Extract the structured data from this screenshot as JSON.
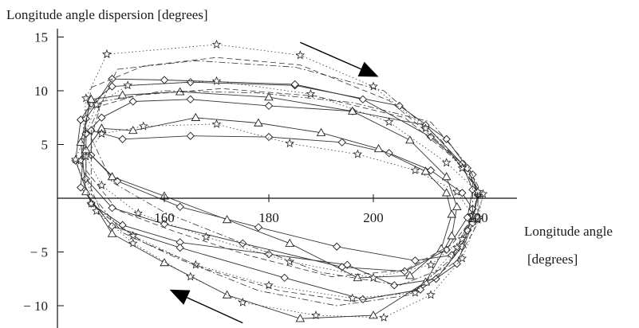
{
  "chart_data": {
    "type": "line",
    "ylabel": "Longitude angle dispersion [degrees]",
    "xlabel_line1": "Longitude angle",
    "xlabel_line2": "[degrees]",
    "xlim": [
      142,
      223
    ],
    "ylim": [
      -12,
      15.5
    ],
    "x_ticks": [
      {
        "value": 160,
        "label": "160"
      },
      {
        "value": 180,
        "label": "180"
      },
      {
        "value": 200,
        "label": "200"
      },
      {
        "value": 220,
        "label": "220"
      }
    ],
    "y_ticks": [
      {
        "value": 15,
        "label": "15"
      },
      {
        "value": 10,
        "label": "10"
      },
      {
        "value": 5,
        "label": "5"
      },
      {
        "value": -5,
        "label": "− 5"
      },
      {
        "value": -10,
        "label": "− 10"
      }
    ],
    "arrows": [
      {
        "direction": "right-down",
        "from": [
          186,
          14.5
        ],
        "to": [
          201,
          11.3
        ]
      },
      {
        "direction": "left-up",
        "from": [
          175,
          -11.6
        ],
        "to": [
          161,
          -8.5
        ]
      }
    ],
    "series": [
      {
        "marker": "diamond",
        "dash": "solid",
        "points": [
          [
            144,
            7.3
          ],
          [
            146,
            8.8
          ],
          [
            150,
            10.4
          ],
          [
            165,
            10.8
          ],
          [
            185,
            10.5
          ],
          [
            205,
            8.6
          ],
          [
            214,
            5.5
          ],
          [
            219,
            2.2
          ],
          [
            220,
            0.3
          ],
          [
            219,
            -1.7
          ],
          [
            217,
            -4.5
          ],
          [
            212,
            -7.5
          ],
          [
            204,
            -8.1
          ],
          [
            195,
            -6.2
          ],
          [
            180,
            -5.2
          ],
          [
            163,
            -4.1
          ],
          [
            152,
            -2.5
          ],
          [
            146,
            -0.5
          ],
          [
            143,
            3.5
          ],
          [
            144,
            7.3
          ]
        ]
      },
      {
        "marker": "diamond",
        "dash": "solid",
        "points": [
          [
            145,
            6.0
          ],
          [
            148,
            7.5
          ],
          [
            154,
            9.0
          ],
          [
            165,
            9.2
          ],
          [
            180,
            8.6
          ],
          [
            196,
            8.1
          ],
          [
            210,
            6.8
          ],
          [
            217,
            3.2
          ],
          [
            219,
            0.8
          ],
          [
            218,
            -1.8
          ],
          [
            214,
            -4.8
          ],
          [
            206,
            -6.8
          ],
          [
            194,
            -6.4
          ],
          [
            175,
            -4.2
          ],
          [
            160,
            -2.4
          ],
          [
            150,
            -0.9
          ],
          [
            145,
            1.8
          ],
          [
            145,
            6.0
          ]
        ]
      },
      {
        "marker": "diamond",
        "dash": "solid",
        "points": [
          [
            146,
            6.3
          ],
          [
            152,
            5.5
          ],
          [
            165,
            5.8
          ],
          [
            180,
            5.7
          ],
          [
            194,
            5.2
          ],
          [
            203,
            4.2
          ],
          [
            211,
            2.6
          ],
          [
            217,
            0.5
          ],
          [
            219,
            -1.0
          ],
          [
            218,
            -3.0
          ],
          [
            215,
            -5.3
          ],
          [
            208,
            -5.8
          ],
          [
            193,
            -4.5
          ],
          [
            178,
            -2.7
          ],
          [
            163,
            -0.8
          ],
          [
            151,
            1.6
          ],
          [
            146,
            4.0
          ],
          [
            146,
            6.3
          ]
        ]
      },
      {
        "marker": "diamond",
        "dash": "solid",
        "points": [
          [
            150,
            11.1
          ],
          [
            160,
            11.0
          ],
          [
            185,
            10.6
          ],
          [
            198,
            9.2
          ],
          [
            211,
            5.7
          ],
          [
            218,
            2.8
          ],
          [
            220,
            0.4
          ],
          [
            219,
            -2.3
          ],
          [
            216,
            -6.1
          ],
          [
            209,
            -8.5
          ],
          [
            198,
            -9.4
          ],
          [
            183,
            -7.4
          ],
          [
            163,
            -4.6
          ],
          [
            150,
            -2.6
          ],
          [
            144,
            1.0
          ],
          [
            145,
            7.4
          ],
          [
            150,
            11.1
          ]
        ]
      },
      {
        "marker": "triangle",
        "dash": "solid",
        "points": [
          [
            148,
            6.5
          ],
          [
            154,
            6.3
          ],
          [
            166,
            7.5
          ],
          [
            178,
            7.0
          ],
          [
            190,
            6.1
          ],
          [
            201,
            4.6
          ],
          [
            210,
            2.5
          ],
          [
            214,
            0.5
          ],
          [
            215,
            -1.5
          ],
          [
            213,
            -4.7
          ],
          [
            207,
            -7.2
          ],
          [
            197,
            -7.4
          ],
          [
            184,
            -4.2
          ],
          [
            172,
            -2.0
          ],
          [
            160,
            0.2
          ],
          [
            150,
            2.0
          ],
          [
            145,
            4.5
          ],
          [
            148,
            6.5
          ]
        ]
      },
      {
        "marker": "triangle",
        "dash": "solid",
        "points": [
          [
            146,
            9.2
          ],
          [
            152,
            9.6
          ],
          [
            163,
            9.9
          ],
          [
            180,
            9.4
          ],
          [
            196,
            8.1
          ],
          [
            207,
            5.4
          ],
          [
            214,
            2.0
          ],
          [
            216,
            -0.8
          ],
          [
            215,
            -3.5
          ],
          [
            210,
            -7.8
          ],
          [
            200,
            -10.9
          ],
          [
            186,
            -11.2
          ],
          [
            172,
            -9.0
          ],
          [
            160,
            -6.0
          ],
          [
            150,
            -3.3
          ],
          [
            145,
            0.6
          ],
          [
            144,
            5.2
          ],
          [
            146,
            9.2
          ]
        ]
      },
      {
        "marker": "star",
        "dash": "dotted",
        "points": [
          [
            149,
            13.4
          ],
          [
            170,
            14.3
          ],
          [
            186,
            13.3
          ],
          [
            200,
            10.4
          ],
          [
            210,
            6.5
          ],
          [
            217,
            2.8
          ],
          [
            221,
            0.4
          ],
          [
            220,
            -2.0
          ],
          [
            217,
            -5.6
          ],
          [
            211,
            -9.0
          ],
          [
            202,
            -11.1
          ],
          [
            189,
            -10.9
          ],
          [
            175,
            -9.7
          ],
          [
            165,
            -7.3
          ],
          [
            154,
            -4.2
          ],
          [
            147,
            -1.2
          ],
          [
            144,
            3.5
          ],
          [
            145,
            9.3
          ],
          [
            149,
            13.4
          ]
        ]
      },
      {
        "marker": "star",
        "dash": "dotted",
        "points": [
          [
            147,
            8.7
          ],
          [
            153,
            10.5
          ],
          [
            170,
            10.9
          ],
          [
            188,
            9.7
          ],
          [
            203,
            7.1
          ],
          [
            214,
            3.3
          ],
          [
            220,
            0.6
          ],
          [
            220,
            -1.8
          ],
          [
            216,
            -4.6
          ],
          [
            208,
            -8.8
          ],
          [
            196,
            -9.3
          ],
          [
            180,
            -8.1
          ],
          [
            166,
            -6.2
          ],
          [
            154,
            -3.5
          ],
          [
            146,
            -0.5
          ],
          [
            143,
            3.6
          ],
          [
            147,
            8.7
          ]
        ]
      },
      {
        "marker": "star",
        "dash": "dotted",
        "points": [
          [
            148,
            6.0
          ],
          [
            156,
            6.7
          ],
          [
            170,
            6.9
          ],
          [
            184,
            5.1
          ],
          [
            197,
            4.1
          ],
          [
            208,
            2.6
          ],
          [
            216,
            0.6
          ],
          [
            219,
            -1.6
          ],
          [
            217,
            -3.8
          ],
          [
            211,
            -6.2
          ],
          [
            200,
            -7.4
          ],
          [
            184,
            -5.9
          ],
          [
            168,
            -3.6
          ],
          [
            155,
            -1.4
          ],
          [
            148,
            1.2
          ],
          [
            145,
            3.9
          ],
          [
            148,
            6.0
          ]
        ]
      },
      {
        "marker": "none",
        "dash": "dashed",
        "points": [
          [
            146,
            10.3
          ],
          [
            156,
            12.3
          ],
          [
            170,
            13.1
          ],
          [
            186,
            12.4
          ],
          [
            203,
            9.1
          ],
          [
            214,
            4.6
          ],
          [
            220,
            0.9
          ],
          [
            220,
            -2.3
          ],
          [
            216,
            -5.8
          ],
          [
            208,
            -8.6
          ],
          [
            196,
            -9.6
          ],
          [
            182,
            -8.6
          ],
          [
            168,
            -6.6
          ],
          [
            156,
            -4.1
          ],
          [
            148,
            -1.4
          ],
          [
            144,
            3.2
          ],
          [
            146,
            10.3
          ]
        ]
      },
      {
        "marker": "none",
        "dash": "dashed",
        "points": [
          [
            145,
            8.2
          ],
          [
            155,
            9.6
          ],
          [
            171,
            10.2
          ],
          [
            189,
            9.5
          ],
          [
            206,
            7.5
          ],
          [
            216,
            3.5
          ],
          [
            220,
            0.7
          ],
          [
            219,
            -1.9
          ],
          [
            215,
            -4.3
          ],
          [
            206,
            -6.7
          ],
          [
            192,
            -7.3
          ],
          [
            176,
            -5.3
          ],
          [
            162,
            -3.1
          ],
          [
            151,
            -1.1
          ],
          [
            145,
            2.6
          ],
          [
            145,
            8.2
          ]
        ]
      },
      {
        "marker": "none",
        "dash": "dashdot",
        "points": [
          [
            148,
            9.0
          ],
          [
            160,
            10.0
          ],
          [
            178,
            9.8
          ],
          [
            196,
            8.9
          ],
          [
            211,
            7.1
          ],
          [
            218,
            3.1
          ],
          [
            221,
            0.2
          ],
          [
            219,
            -2.7
          ],
          [
            214,
            -6.4
          ],
          [
            205,
            -8.1
          ],
          [
            190,
            -6.9
          ],
          [
            174,
            -4.0
          ],
          [
            160,
            -1.3
          ],
          [
            150,
            1.5
          ],
          [
            146,
            5.6
          ],
          [
            148,
            9.0
          ]
        ]
      },
      {
        "marker": "none",
        "dash": "dashdot",
        "points": [
          [
            151,
            12.0
          ],
          [
            166,
            12.8
          ],
          [
            185,
            12.2
          ],
          [
            202,
            10.0
          ],
          [
            213,
            5.4
          ],
          [
            219,
            1.5
          ],
          [
            219,
            -1.5
          ],
          [
            215,
            -5.6
          ],
          [
            207,
            -9.0
          ],
          [
            193,
            -10.0
          ],
          [
            178,
            -8.6
          ],
          [
            163,
            -5.7
          ],
          [
            152,
            -3.2
          ],
          [
            146,
            0.4
          ],
          [
            146,
            6.8
          ],
          [
            151,
            12.0
          ]
        ]
      }
    ]
  }
}
